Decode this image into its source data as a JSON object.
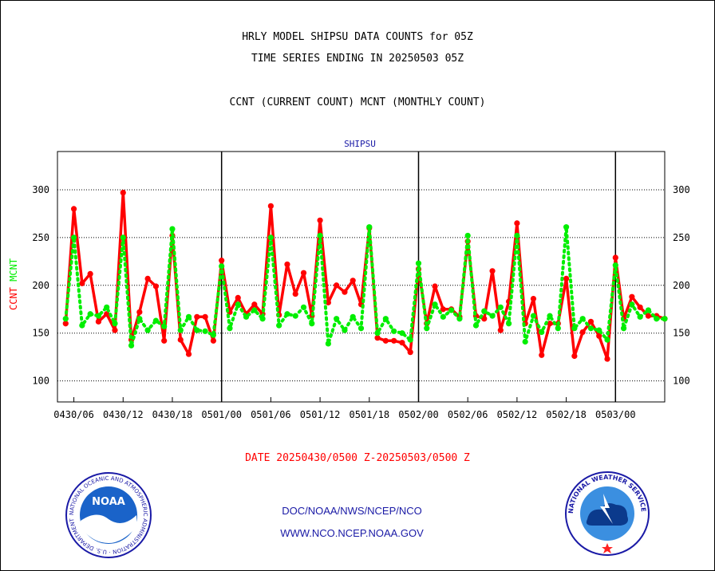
{
  "titles": {
    "line1": "HRLY MODEL SHIPSU DATA COUNTS for 05Z",
    "line2": "TIME SERIES ENDING IN 20250503 05Z",
    "line3": "CCNT (CURRENT COUNT) MCNT (MONTHLY COUNT)"
  },
  "footer": {
    "date_range": "DATE 20250430/0500 Z-20250503/0500 Z",
    "org_path": "DOC/NOAA/NWS/NCEP/NCO",
    "website": "WWW.NCO.NCEP.NOAA.GOV"
  },
  "logos": {
    "noaa_text": "NOAA",
    "noaa_ring": "NATIONAL OCEANIC AND ATMOSPHERIC ADMINISTRATION · U.S. DEPARTMENT OF COMMERCE",
    "nws_ring": "NATIONAL WEATHER SERVICE"
  },
  "colors": {
    "ccnt": "#ff0000",
    "mcnt": "#00ee00",
    "label_blue": "#1a1aa6"
  },
  "chart_data": {
    "type": "line",
    "title": "SHIPSU",
    "ylabel_left": [
      "CCNT",
      "MCNT"
    ],
    "ylim": [
      78,
      340
    ],
    "yticks": [
      100,
      150,
      200,
      250,
      300
    ],
    "x_start_hour": 4,
    "x_end_hour": 78,
    "xticks": [
      {
        "hour": 6,
        "label": "0430/06"
      },
      {
        "hour": 12,
        "label": "0430/12"
      },
      {
        "hour": 18,
        "label": "0430/18"
      },
      {
        "hour": 24,
        "label": "0501/00"
      },
      {
        "hour": 30,
        "label": "0501/06"
      },
      {
        "hour": 36,
        "label": "0501/12"
      },
      {
        "hour": 42,
        "label": "0501/18"
      },
      {
        "hour": 48,
        "label": "0502/00"
      },
      {
        "hour": 54,
        "label": "0502/06"
      },
      {
        "hour": 60,
        "label": "0502/12"
      },
      {
        "hour": 66,
        "label": "0502/18"
      },
      {
        "hour": 72,
        "label": "0503/00"
      }
    ],
    "day_boundaries": [
      24,
      48,
      72
    ],
    "grid": true,
    "series": [
      {
        "name": "CCNT",
        "style": "solid",
        "x": [
          5,
          6,
          7,
          8,
          9,
          10,
          11,
          12,
          13,
          14,
          15,
          16,
          17,
          18,
          19,
          20,
          21,
          22,
          23,
          24,
          25,
          26,
          27,
          28,
          29,
          30,
          31,
          32,
          33,
          34,
          35,
          36,
          37,
          38,
          39,
          40,
          41,
          42,
          43,
          44,
          45,
          46,
          47,
          48,
          49,
          50,
          51,
          52,
          53,
          54,
          55,
          56,
          57,
          58,
          59,
          60,
          61,
          62,
          63,
          64,
          65,
          66,
          67,
          68,
          69,
          70,
          71,
          72,
          73,
          74,
          75,
          76,
          77,
          78
        ],
        "values": [
          160,
          280,
          202,
          212,
          162,
          170,
          153,
          297,
          143,
          172,
          207,
          199,
          142,
          252,
          143,
          128,
          167,
          167,
          142,
          226,
          172,
          187,
          170,
          180,
          170,
          283,
          169,
          222,
          191,
          213,
          168,
          268,
          182,
          200,
          193,
          205,
          180,
          260,
          145,
          142,
          142,
          140,
          130,
          217,
          160,
          199,
          175,
          175,
          167,
          246,
          168,
          165,
          215,
          153,
          183,
          265,
          160,
          186,
          127,
          160,
          160,
          207,
          126,
          151,
          162,
          147,
          123,
          229,
          165,
          188,
          177,
          168,
          168,
          165
        ]
      },
      {
        "name": "MCNT",
        "style": "dotted",
        "x": [
          5,
          6,
          7,
          8,
          9,
          10,
          11,
          12,
          13,
          14,
          15,
          16,
          17,
          18,
          19,
          20,
          21,
          22,
          23,
          24,
          25,
          26,
          27,
          28,
          29,
          30,
          31,
          32,
          33,
          34,
          35,
          36,
          37,
          38,
          39,
          40,
          41,
          42,
          43,
          44,
          45,
          46,
          47,
          48,
          49,
          50,
          51,
          52,
          53,
          54,
          55,
          56,
          57,
          58,
          59,
          60,
          61,
          62,
          63,
          64,
          65,
          66,
          67,
          68,
          69,
          70,
          71,
          72,
          73,
          74,
          75,
          76,
          77,
          78
        ],
        "values": [
          165,
          250,
          158,
          170,
          168,
          177,
          160,
          250,
          137,
          165,
          153,
          163,
          157,
          259,
          153,
          167,
          153,
          152,
          148,
          220,
          155,
          180,
          167,
          174,
          165,
          250,
          158,
          170,
          168,
          177,
          160,
          252,
          139,
          165,
          153,
          167,
          155,
          261,
          150,
          165,
          152,
          150,
          143,
          223,
          155,
          180,
          167,
          174,
          165,
          252,
          158,
          173,
          168,
          177,
          160,
          252,
          141,
          168,
          151,
          168,
          155,
          261,
          155,
          165,
          155,
          153,
          143,
          221,
          155,
          180,
          167,
          174,
          165,
          165
        ]
      }
    ]
  }
}
